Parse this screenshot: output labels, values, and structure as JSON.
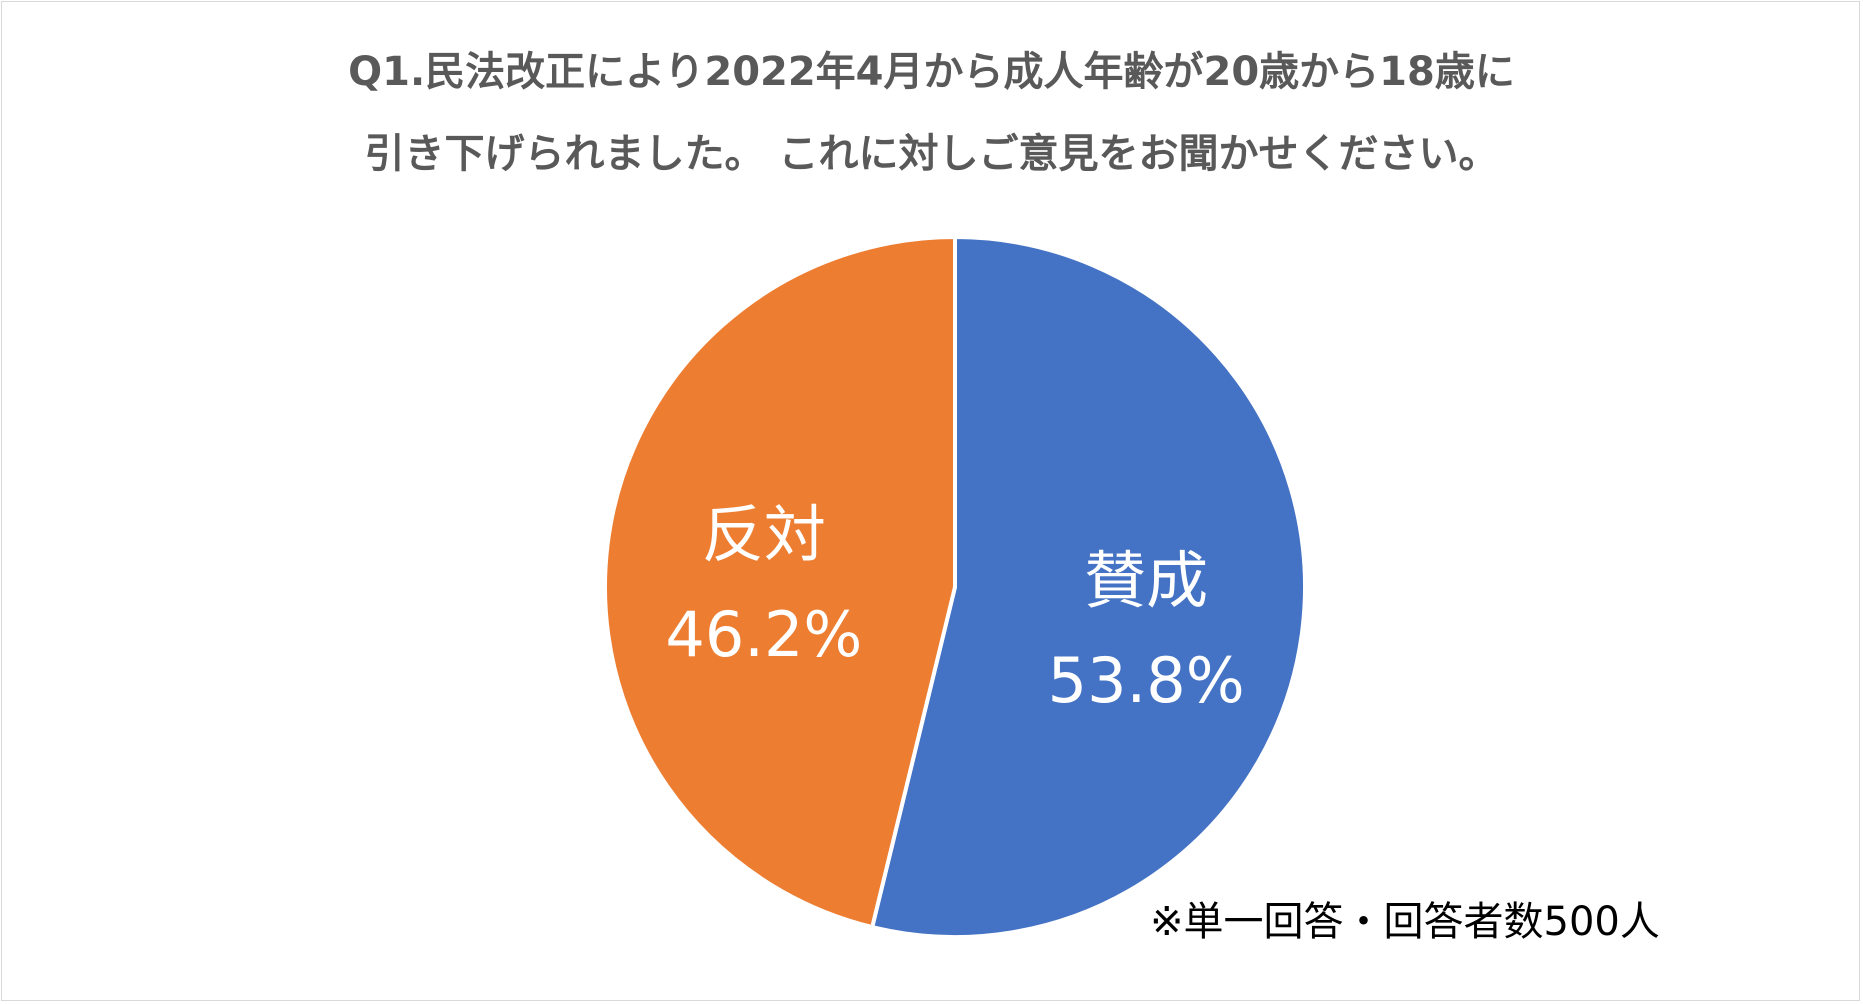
{
  "chart_data": {
    "type": "pie",
    "title_lines": [
      "Q1.民法改正により2022年4月から成人年齢が20歳から18歳に",
      "引き下げられました。 これに対しご意見をお聞かせください。"
    ],
    "slices": [
      {
        "label": "賛成",
        "value": 53.8,
        "value_text": "53.8%",
        "color": "#4472c4"
      },
      {
        "label": "反対",
        "value": 46.2,
        "value_text": "46.2%",
        "color": "#ed7d31"
      }
    ],
    "start_angle": "12 o'clock, clockwise"
  },
  "note": "※単一回答・回答者数500人"
}
